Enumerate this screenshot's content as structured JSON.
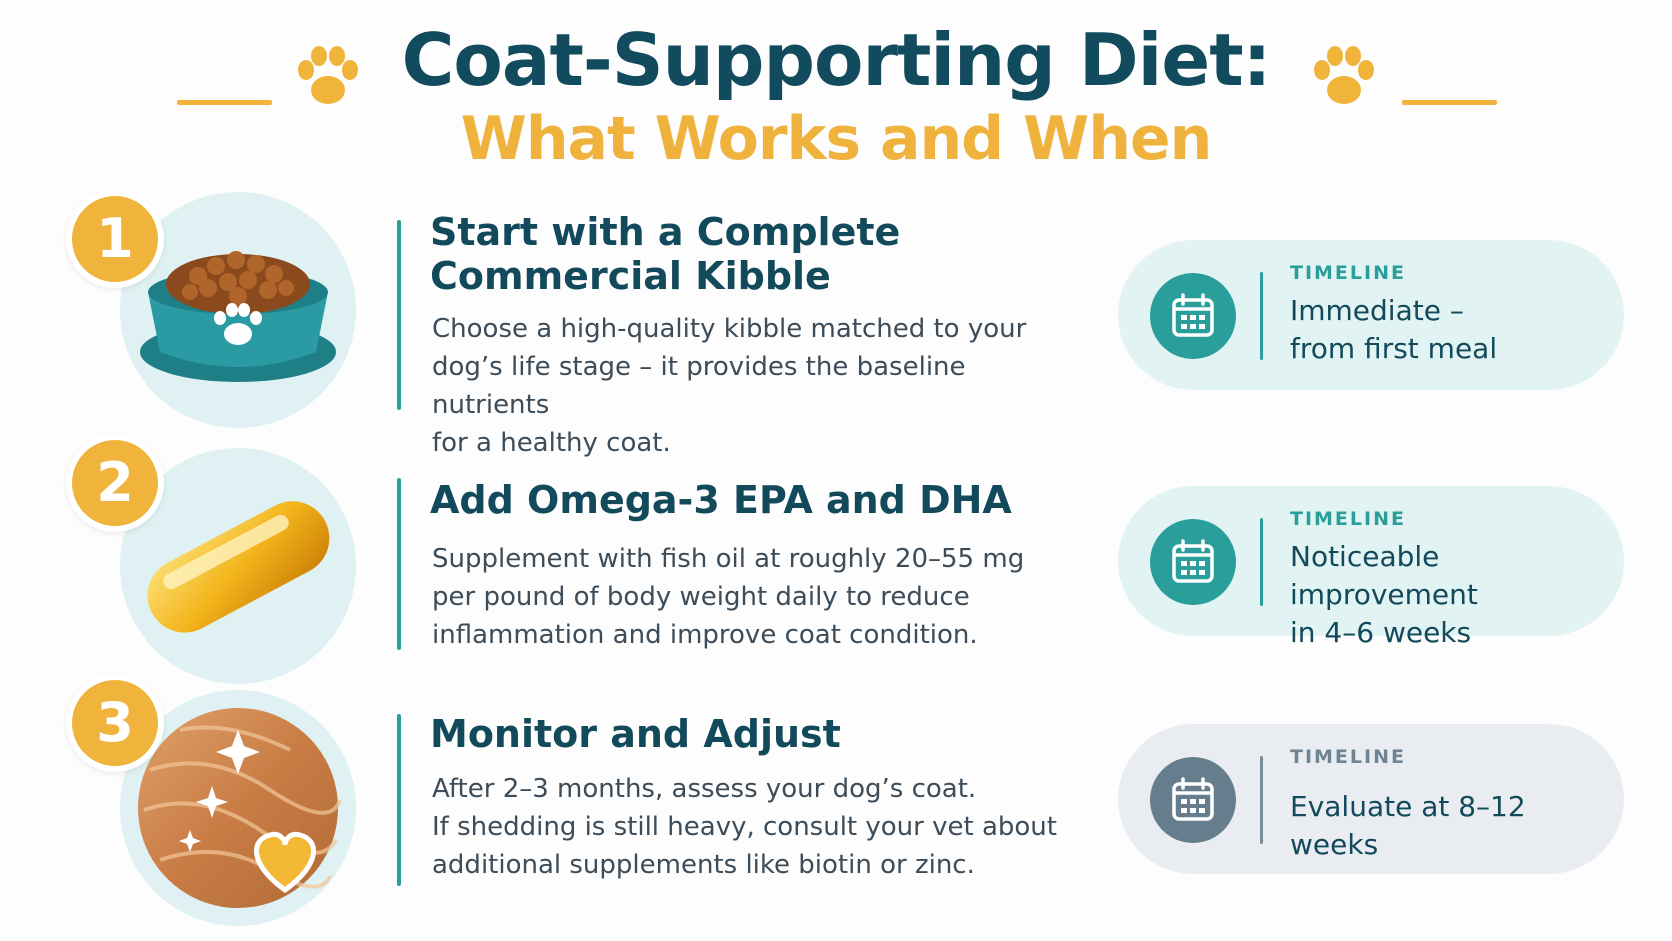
{
  "header": {
    "title": "Coat-Supporting Diet:",
    "subtitle": "What Works and When"
  },
  "colors": {
    "navy": "#124b5e",
    "gold": "#efb23c",
    "teal": "#2a9e9b",
    "slate": "#667d8d"
  },
  "steps": [
    {
      "number": "1",
      "icon": "kibble-bowl-icon",
      "title_line1": "Start with a Complete",
      "title_line2": "Commercial Kibble",
      "desc_line1": "Choose a high-quality kibble matched to your",
      "desc_line2": "dog’s life stage – it provides the baseline nutrients",
      "desc_line3": "for a healthy coat.",
      "timeline_label": "TIMELINE",
      "timeline_line1": "Immediate –",
      "timeline_line2": "from first meal"
    },
    {
      "number": "2",
      "icon": "fish-oil-capsule-icon",
      "title_line1": "Add Omega-3 EPA and DHA",
      "desc_line1": "Supplement with fish oil at roughly 20–55 mg",
      "desc_line2": "per pound of body weight daily to reduce",
      "desc_line3": "inflammation and improve coat condition.",
      "timeline_label": "TIMELINE",
      "timeline_line1": "Noticeable improvement",
      "timeline_line2": "in 4–6 weeks"
    },
    {
      "number": "3",
      "icon": "shiny-fur-heart-icon",
      "title_line1": "Monitor and Adjust",
      "desc_line1": "After 2–3 months, assess your dog’s coat.",
      "desc_line2": "If shedding is still heavy, consult your vet about",
      "desc_line3": "additional supplements like biotin or zinc.",
      "timeline_label": "TIMELINE",
      "timeline_line1": "Evaluate at 8–12 weeks"
    }
  ]
}
